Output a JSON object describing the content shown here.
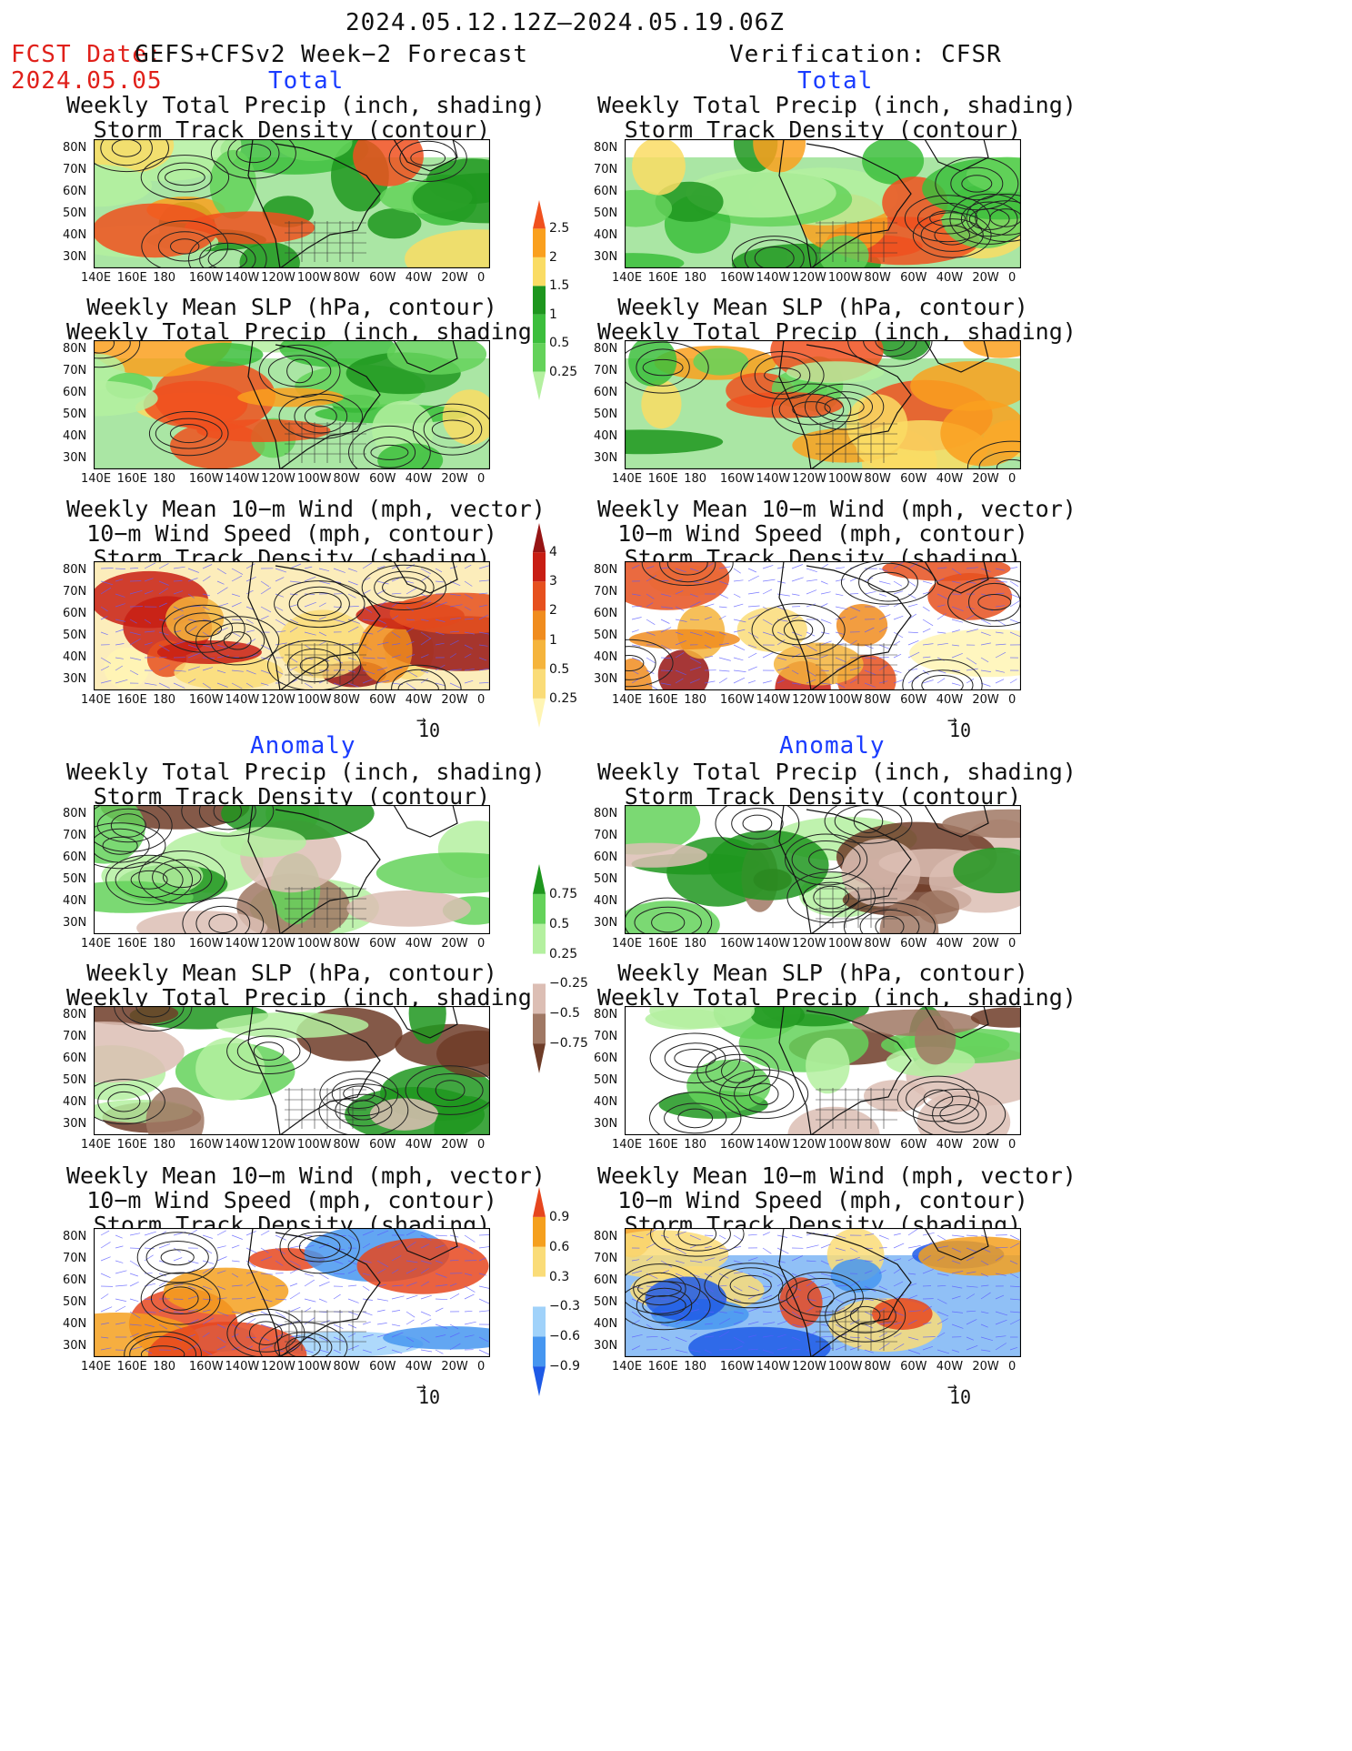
{
  "header": {
    "period": "2024.05.12.12Z–2024.05.19.06Z",
    "fcst_label": "FCST Date:",
    "fcst_source": "GEFS+CFSv2 Week−2 Forecast",
    "fcst_date": "2024.05.05",
    "verification": "Verification: CFSR"
  },
  "sections": {
    "total": "Total",
    "anomaly": "Anomaly"
  },
  "titles": {
    "precip_storm": [
      "Weekly Total Precip (inch, shading)",
      "Storm Track Density (contour)"
    ],
    "slp_precip": [
      "Weekly Mean SLP (hPa, contour)",
      "Weekly Total Precip (inch, shading)"
    ],
    "wind_storm": [
      "Weekly Mean 10−m Wind (mph, vector)",
      "10−m Wind Speed (mph, contour)",
      "Storm Track Density (shading)"
    ]
  },
  "axes": {
    "lat_labels": [
      "80N",
      "70N",
      "60N",
      "50N",
      "40N",
      "30N"
    ],
    "lon_labels": [
      "140E",
      "160E",
      "180",
      "160W",
      "140W",
      "120W",
      "100W",
      "80W",
      "60W",
      "40W",
      "20W",
      "0"
    ]
  },
  "vector_ref": "10",
  "colorbars": {
    "precip_total": [
      "0.25",
      "0.5",
      "1",
      "1.5",
      "2",
      "2.5"
    ],
    "storm_total": [
      "0.25",
      "0.5",
      "1",
      "2",
      "3",
      "4"
    ],
    "precip_anom": [
      "−0.75",
      "−0.5",
      "−0.25",
      "0.25",
      "0.5",
      "0.75"
    ],
    "storm_anom": [
      "−0.9",
      "−0.6",
      "−0.3",
      "0.3",
      "0.6",
      "0.9"
    ]
  },
  "colors": {
    "precip": [
      "#b4f0a0",
      "#64d25a",
      "#3cbe3c",
      "#1e961e",
      "#fadc64",
      "#faa01e",
      "#f0501e"
    ],
    "precip_anom": [
      "#6e3c28",
      "#a07864",
      "#dcbeb4",
      "#ffffff",
      "#b4f0a0",
      "#64d25a",
      "#1e961e"
    ],
    "storm": [
      "#fff5b4",
      "#fadc78",
      "#f5b43c",
      "#f08c1e",
      "#e6501e",
      "#c81e14",
      "#961414"
    ],
    "storm_anom": [
      "#1e5ae6",
      "#4696f0",
      "#a0d2fa",
      "#ffffff",
      "#fadc78",
      "#f5a01e",
      "#e6461e"
    ]
  }
}
